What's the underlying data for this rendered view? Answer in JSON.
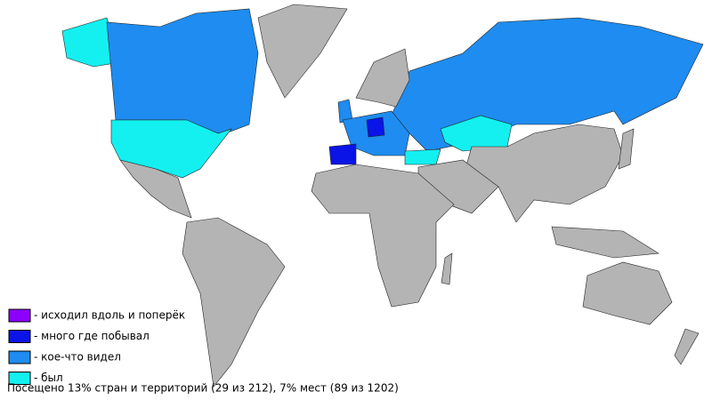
{
  "legend": [
    {
      "label": "- исходил вдоль и поперёк",
      "color": "#8c00ff"
    },
    {
      "label": "- много где побывал",
      "color": "#0a14e6"
    },
    {
      "label": "- кое-что видел",
      "color": "#1e8cf0"
    },
    {
      "label": "- был",
      "color": "#14f0f0"
    }
  ],
  "footer": "Посещено 13% стран и территорий (29 из 212), 7% мест (89 из 1202)"
}
